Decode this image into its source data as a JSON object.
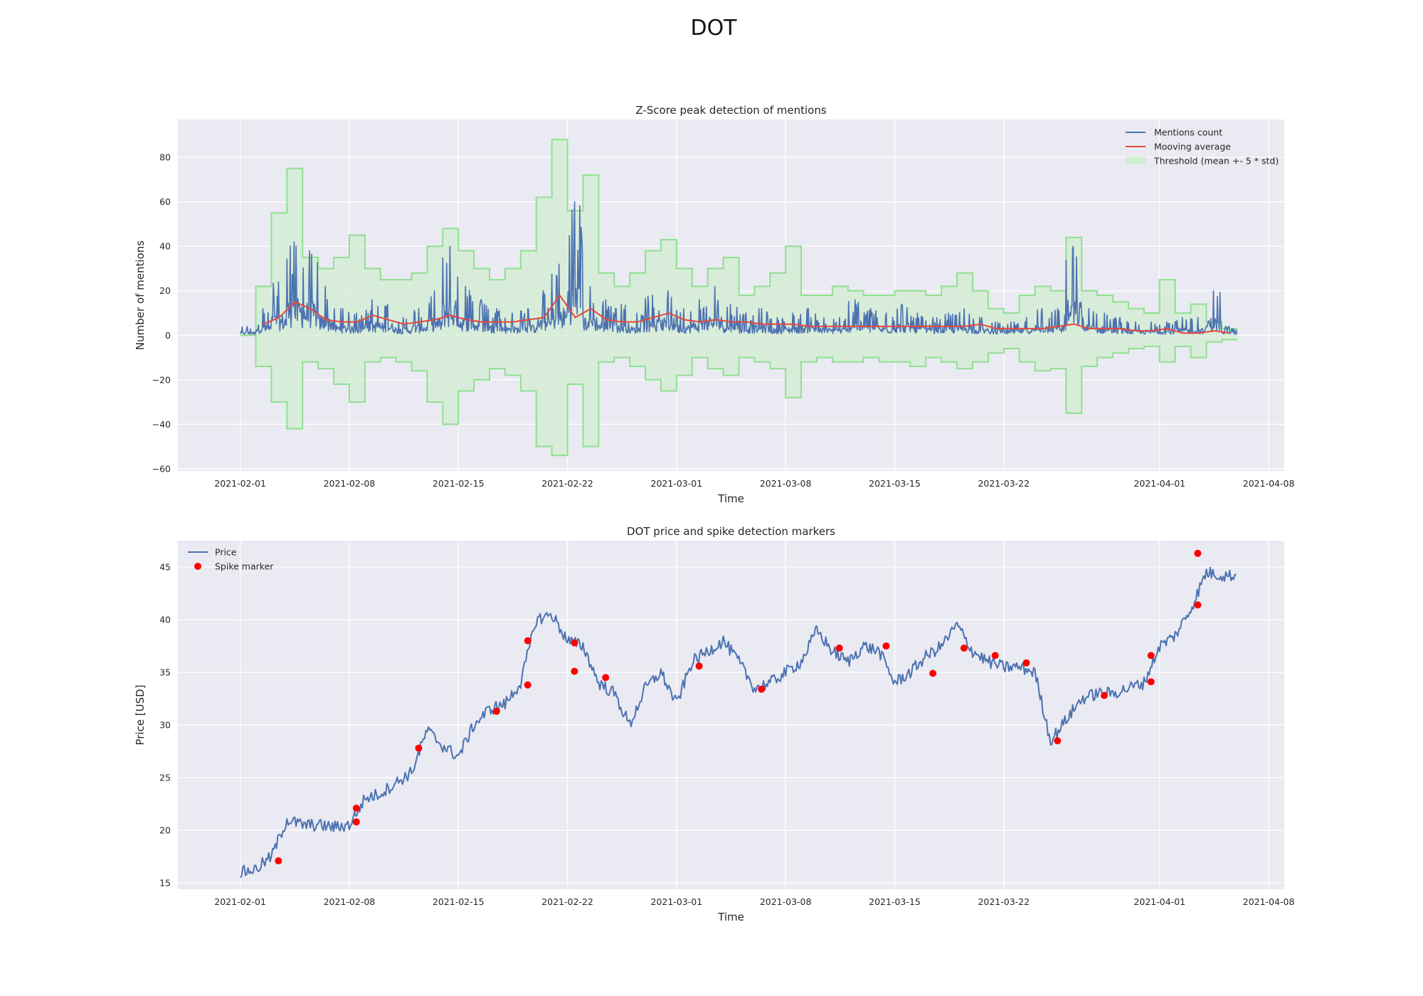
{
  "figure": {
    "suptitle": "DOT"
  },
  "colors": {
    "plot_bg": "#EAEAF2",
    "grid": "#FFFFFF",
    "price": "#4C72B0",
    "mentions": "#4C72B0",
    "moving_avg": "#E8473C",
    "threshold": "#90E090",
    "marker": "#FF0000"
  },
  "chart_data": [
    {
      "type": "line",
      "title": "Z-Score peak detection of mentions",
      "xlabel": "Time",
      "ylabel": "Number of mentions",
      "xlim": [
        "2021-01-28",
        "2021-04-09"
      ],
      "ylim": [
        -61,
        97
      ],
      "xticks": [
        "2021-02-01",
        "2021-02-08",
        "2021-02-15",
        "2021-02-22",
        "2021-03-01",
        "2021-03-08",
        "2021-03-15",
        "2021-03-22",
        "2021-04-01",
        "2021-04-08"
      ],
      "yticks": [
        -60,
        -40,
        -20,
        0,
        20,
        40,
        60,
        80
      ],
      "grid": true,
      "legend": {
        "position": "top-right",
        "entries": [
          "Mentions count",
          "Mooving average",
          "Threshold (mean +- 5 * std)"
        ]
      },
      "series": [
        {
          "name": "Mentions count",
          "x": [
            "2021-02-01",
            "2021-02-02",
            "2021-02-03",
            "2021-02-04",
            "2021-02-05",
            "2021-02-06",
            "2021-02-07",
            "2021-02-08",
            "2021-02-09",
            "2021-02-10",
            "2021-02-11",
            "2021-02-12",
            "2021-02-13",
            "2021-02-14",
            "2021-02-15",
            "2021-02-16",
            "2021-02-17",
            "2021-02-18",
            "2021-02-19",
            "2021-02-20",
            "2021-02-21",
            "2021-02-22",
            "2021-02-23",
            "2021-02-24",
            "2021-02-25",
            "2021-02-26",
            "2021-02-27",
            "2021-02-28",
            "2021-03-01",
            "2021-03-02",
            "2021-03-03",
            "2021-03-04",
            "2021-03-05",
            "2021-03-06",
            "2021-03-07",
            "2021-03-08",
            "2021-03-09",
            "2021-03-10",
            "2021-03-11",
            "2021-03-12",
            "2021-03-13",
            "2021-03-14",
            "2021-03-15",
            "2021-03-16",
            "2021-03-17",
            "2021-03-18",
            "2021-03-19",
            "2021-03-20",
            "2021-03-21",
            "2021-03-22",
            "2021-03-23",
            "2021-03-24",
            "2021-03-25",
            "2021-03-26",
            "2021-03-27",
            "2021-03-28",
            "2021-03-29",
            "2021-03-30",
            "2021-03-31",
            "2021-04-01",
            "2021-04-02",
            "2021-04-03",
            "2021-04-04",
            "2021-04-05"
          ],
          "values": [
            4,
            12,
            24,
            42,
            38,
            22,
            12,
            10,
            16,
            14,
            8,
            12,
            20,
            40,
            22,
            16,
            12,
            10,
            12,
            20,
            32,
            60,
            22,
            16,
            14,
            10,
            18,
            20,
            12,
            16,
            22,
            14,
            10,
            12,
            8,
            10,
            12,
            8,
            8,
            16,
            12,
            10,
            14,
            10,
            8,
            10,
            12,
            8,
            6,
            6,
            8,
            12,
            12,
            40,
            12,
            10,
            8,
            6,
            6,
            6,
            8,
            8,
            20,
            4
          ]
        },
        {
          "name": "Mooving average",
          "x": [
            "2021-02-02",
            "2021-02-03",
            "2021-02-04",
            "2021-02-05",
            "2021-02-06",
            "2021-02-07",
            "2021-02-08",
            "2021-02-09",
            "2021-02-10",
            "2021-02-11",
            "2021-02-12",
            "2021-02-13",
            "2021-02-14",
            "2021-02-15",
            "2021-02-16",
            "2021-02-17",
            "2021-02-18",
            "2021-02-19",
            "2021-02-20",
            "2021-02-21",
            "2021-02-22",
            "2021-02-23",
            "2021-02-24",
            "2021-02-25",
            "2021-02-26",
            "2021-02-27",
            "2021-02-28",
            "2021-03-01",
            "2021-03-02",
            "2021-03-03",
            "2021-03-04",
            "2021-03-05",
            "2021-03-06",
            "2021-03-07",
            "2021-03-08",
            "2021-03-09",
            "2021-03-10",
            "2021-03-11",
            "2021-03-12",
            "2021-03-13",
            "2021-03-14",
            "2021-03-15",
            "2021-03-16",
            "2021-03-17",
            "2021-03-18",
            "2021-03-19",
            "2021-03-20",
            "2021-03-21",
            "2021-03-22",
            "2021-03-23",
            "2021-03-24",
            "2021-03-25",
            "2021-03-26",
            "2021-03-27",
            "2021-03-28",
            "2021-03-29",
            "2021-03-30",
            "2021-03-31",
            "2021-04-01",
            "2021-04-02",
            "2021-04-03",
            "2021-04-04",
            "2021-04-05"
          ],
          "values": [
            5,
            8,
            15,
            12,
            7,
            6,
            6,
            9,
            7,
            5,
            6,
            7,
            9,
            7,
            6,
            6,
            6,
            7,
            8,
            18,
            8,
            12,
            7,
            6,
            6,
            8,
            10,
            7,
            6,
            7,
            6,
            6,
            5,
            5,
            5,
            4,
            4,
            4,
            4,
            4,
            4,
            4,
            4,
            4,
            4,
            4,
            5,
            3,
            3,
            3,
            3,
            4,
            5,
            3,
            3,
            3,
            2,
            2,
            3,
            1,
            1,
            2,
            1
          ]
        },
        {
          "name": "Threshold (mean +- 5 * std)",
          "x": [
            "2021-02-01",
            "2021-02-02",
            "2021-02-03",
            "2021-02-04",
            "2021-02-05",
            "2021-02-06",
            "2021-02-07",
            "2021-02-08",
            "2021-02-09",
            "2021-02-10",
            "2021-02-11",
            "2021-02-12",
            "2021-02-13",
            "2021-02-14",
            "2021-02-15",
            "2021-02-16",
            "2021-02-17",
            "2021-02-18",
            "2021-02-19",
            "2021-02-20",
            "2021-02-21",
            "2021-02-22",
            "2021-02-23",
            "2021-02-24",
            "2021-02-25",
            "2021-02-26",
            "2021-02-27",
            "2021-02-28",
            "2021-03-01",
            "2021-03-02",
            "2021-03-03",
            "2021-03-04",
            "2021-03-05",
            "2021-03-06",
            "2021-03-07",
            "2021-03-08",
            "2021-03-09",
            "2021-03-10",
            "2021-03-11",
            "2021-03-12",
            "2021-03-13",
            "2021-03-14",
            "2021-03-15",
            "2021-03-16",
            "2021-03-17",
            "2021-03-18",
            "2021-03-19",
            "2021-03-20",
            "2021-03-21",
            "2021-03-22",
            "2021-03-23",
            "2021-03-24",
            "2021-03-25",
            "2021-03-26",
            "2021-03-27",
            "2021-03-28",
            "2021-03-29",
            "2021-03-30",
            "2021-03-31",
            "2021-04-01",
            "2021-04-02",
            "2021-04-03",
            "2021-04-04",
            "2021-04-05"
          ],
          "upper": [
            0,
            22,
            55,
            75,
            35,
            30,
            35,
            45,
            30,
            25,
            25,
            28,
            40,
            48,
            38,
            30,
            25,
            30,
            38,
            62,
            88,
            56,
            72,
            28,
            22,
            28,
            38,
            43,
            30,
            22,
            30,
            35,
            18,
            22,
            28,
            40,
            18,
            18,
            22,
            20,
            18,
            18,
            20,
            20,
            18,
            22,
            28,
            20,
            12,
            10,
            18,
            22,
            20,
            44,
            20,
            18,
            15,
            12,
            10,
            25,
            10,
            14,
            6,
            3
          ],
          "lower": [
            0,
            -14,
            -30,
            -42,
            -12,
            -15,
            -22,
            -30,
            -12,
            -10,
            -12,
            -16,
            -30,
            -40,
            -25,
            -20,
            -15,
            -18,
            -25,
            -50,
            -54,
            -22,
            -50,
            -12,
            -10,
            -14,
            -20,
            -25,
            -18,
            -10,
            -15,
            -18,
            -10,
            -12,
            -15,
            -28,
            -12,
            -10,
            -12,
            -12,
            -10,
            -12,
            -12,
            -14,
            -10,
            -12,
            -15,
            -12,
            -8,
            -6,
            -12,
            -16,
            -15,
            -35,
            -14,
            -10,
            -8,
            -6,
            -5,
            -12,
            -5,
            -10,
            -3,
            -2
          ]
        }
      ]
    },
    {
      "type": "line",
      "title": "DOT price and spike detection markers",
      "xlabel": "Time",
      "ylabel": "Price [USD]",
      "xlim": [
        "2021-01-28",
        "2021-04-09"
      ],
      "ylim": [
        14.4,
        47.5
      ],
      "xticks": [
        "2021-02-01",
        "2021-02-08",
        "2021-02-15",
        "2021-02-22",
        "2021-03-01",
        "2021-03-08",
        "2021-03-15",
        "2021-03-22",
        "2021-04-01",
        "2021-04-08"
      ],
      "yticks": [
        15,
        20,
        25,
        30,
        35,
        40,
        45
      ],
      "grid": true,
      "legend": {
        "position": "top-left",
        "entries": [
          "Price",
          "Spike marker"
        ]
      },
      "series": [
        {
          "name": "Price",
          "x": [
            "2021-02-01",
            "2021-02-02",
            "2021-02-03",
            "2021-02-04",
            "2021-02-05",
            "2021-02-06",
            "2021-02-07",
            "2021-02-08",
            "2021-02-09",
            "2021-02-10",
            "2021-02-11",
            "2021-02-12",
            "2021-02-13",
            "2021-02-14",
            "2021-02-15",
            "2021-02-16",
            "2021-02-17",
            "2021-02-18",
            "2021-02-19",
            "2021-02-20",
            "2021-02-21",
            "2021-02-22",
            "2021-02-23",
            "2021-02-24",
            "2021-02-25",
            "2021-02-26",
            "2021-02-27",
            "2021-02-28",
            "2021-03-01",
            "2021-03-02",
            "2021-03-03",
            "2021-03-04",
            "2021-03-05",
            "2021-03-06",
            "2021-03-07",
            "2021-03-08",
            "2021-03-09",
            "2021-03-10",
            "2021-03-11",
            "2021-03-12",
            "2021-03-13",
            "2021-03-14",
            "2021-03-15",
            "2021-03-16",
            "2021-03-17",
            "2021-03-18",
            "2021-03-19",
            "2021-03-20",
            "2021-03-21",
            "2021-03-22",
            "2021-03-23",
            "2021-03-24",
            "2021-03-25",
            "2021-03-26",
            "2021-03-27",
            "2021-03-28",
            "2021-03-29",
            "2021-03-30",
            "2021-03-31",
            "2021-04-01",
            "2021-04-02",
            "2021-04-03",
            "2021-04-04",
            "2021-04-05"
          ],
          "values": [
            16,
            16.3,
            17.5,
            21,
            20.5,
            20.5,
            20.3,
            20.5,
            23,
            23.5,
            24.5,
            25.5,
            29.5,
            28,
            27,
            30,
            31.5,
            32,
            34,
            40,
            40.5,
            38,
            37.5,
            34,
            33,
            30,
            33.5,
            35,
            32,
            36,
            37,
            38,
            36,
            33.5,
            34,
            35,
            36,
            39,
            37,
            36,
            37.5,
            37,
            34,
            35,
            36.5,
            37.5,
            39.5,
            37,
            36,
            35.5,
            35.5,
            35,
            28.5,
            30.5,
            32.5,
            33,
            33,
            33.5,
            34,
            37.5,
            38.5,
            41,
            44.5,
            44.2
          ]
        }
      ],
      "markers": {
        "name": "Spike marker",
        "x": [
          "2021-02-03",
          "2021-02-08",
          "2021-02-08",
          "2021-02-12",
          "2021-02-17",
          "2021-02-19",
          "2021-02-19",
          "2021-02-22",
          "2021-02-22",
          "2021-02-24",
          "2021-03-02",
          "2021-03-06",
          "2021-03-11",
          "2021-03-14",
          "2021-03-17",
          "2021-03-19",
          "2021-03-21",
          "2021-03-23",
          "2021-03-25",
          "2021-03-28",
          "2021-03-31",
          "2021-03-31",
          "2021-04-03",
          "2021-04-03"
        ],
        "values": [
          17.1,
          20.8,
          22.1,
          27.8,
          31.3,
          33.8,
          38,
          35.1,
          37.8,
          34.5,
          35.6,
          33.4,
          37.3,
          37.5,
          34.9,
          37.3,
          36.6,
          35.9,
          28.5,
          32.8,
          34.1,
          36.6,
          41.4,
          46.3
        ]
      }
    }
  ]
}
